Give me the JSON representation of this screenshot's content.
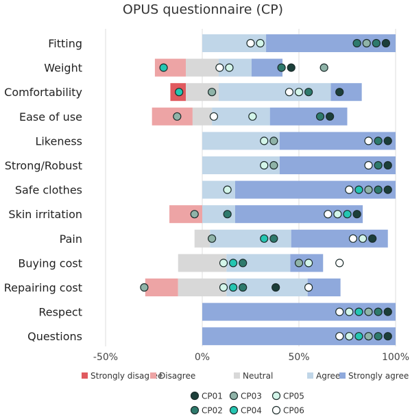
{
  "chart_data": {
    "type": "bar",
    "subtype": "diverging-stacked",
    "title": "OPUS questionnaire (CP)",
    "categories": [
      "Fitting",
      "Weight",
      "Comfortability",
      "Ease of use",
      "Likeness",
      "Strong/Robust",
      "Safe clothes",
      "Skin irritation",
      "Pain",
      "Buying cost",
      "Repairing cost",
      "Respect",
      "Questions"
    ],
    "series": [
      {
        "name": "Strongly disagree",
        "color": "#e05a5f",
        "values": [
          0,
          0,
          8,
          0,
          0,
          0,
          0,
          0,
          0,
          0,
          0,
          0,
          0
        ]
      },
      {
        "name": "Disagree",
        "color": "#eda4a5",
        "values": [
          0,
          16,
          0,
          21,
          0,
          0,
          0,
          17,
          0,
          0,
          17,
          0,
          0
        ]
      },
      {
        "name": "Neutral",
        "color": "#d8d8d8",
        "values": [
          0,
          17,
          17,
          10,
          0,
          0,
          0,
          0,
          8,
          25,
          25,
          0,
          0
        ]
      },
      {
        "name": "Agree",
        "color": "#c0d6e8",
        "values": [
          33,
          17,
          58,
          30,
          40,
          40,
          17,
          17,
          42,
          33,
          42,
          0,
          0
        ]
      },
      {
        "name": "Strongly agree",
        "color": "#8fa9dc",
        "values": [
          67,
          16,
          16,
          40,
          60,
          60,
          83,
          66,
          50,
          17,
          17,
          100,
          100
        ]
      }
    ],
    "xlim": [
      -50,
      100
    ],
    "xticks": [
      "-50%",
      "0%",
      "50%",
      "100%"
    ],
    "xtick_values": [
      -50,
      0,
      50,
      100
    ],
    "legend_position": "bottom",
    "participants": [
      {
        "name": "CP01",
        "color": "#1c3f3a"
      },
      {
        "name": "CP02",
        "color": "#2e7a6c"
      },
      {
        "name": "CP03",
        "color": "#8fb3a8"
      },
      {
        "name": "CP04",
        "color": "#25c6b2"
      },
      {
        "name": "CP05",
        "color": "#d3f5e9"
      },
      {
        "name": "CP06",
        "color": "#ffffff"
      }
    ],
    "markers": [
      [
        {
          "p": 5,
          "x": 25
        },
        {
          "p": 4,
          "x": 30
        },
        {
          "p": 1,
          "x": 80
        },
        {
          "p": 2,
          "x": 85
        },
        {
          "p": 1,
          "x": 90
        },
        {
          "p": 0,
          "x": 95
        }
      ],
      [
        {
          "p": 3,
          "x": -20
        },
        {
          "p": 5,
          "x": 9
        },
        {
          "p": 4,
          "x": 14
        },
        {
          "p": 1,
          "x": 41
        },
        {
          "p": 0,
          "x": 46
        },
        {
          "p": 2,
          "x": 63
        }
      ],
      [
        {
          "p": 3,
          "x": -12
        },
        {
          "p": 2,
          "x": 5
        },
        {
          "p": 5,
          "x": 45
        },
        {
          "p": 4,
          "x": 50
        },
        {
          "p": 1,
          "x": 55
        },
        {
          "p": 0,
          "x": 71
        }
      ],
      [
        {
          "p": 2,
          "x": -13
        },
        {
          "p": 5,
          "x": 6
        },
        {
          "p": 4,
          "x": 26
        },
        {
          "p": 1,
          "x": 61
        },
        {
          "p": 0,
          "x": 66
        }
      ],
      [
        {
          "p": 4,
          "x": 32
        },
        {
          "p": 2,
          "x": 37
        },
        {
          "p": 5,
          "x": 86
        },
        {
          "p": 1,
          "x": 91
        },
        {
          "p": 0,
          "x": 96
        }
      ],
      [
        {
          "p": 4,
          "x": 32
        },
        {
          "p": 2,
          "x": 37
        },
        {
          "p": 5,
          "x": 86
        },
        {
          "p": 1,
          "x": 91
        },
        {
          "p": 0,
          "x": 96
        }
      ],
      [
        {
          "p": 4,
          "x": 13
        },
        {
          "p": 5,
          "x": 76
        },
        {
          "p": 3,
          "x": 81
        },
        {
          "p": 2,
          "x": 86
        },
        {
          "p": 1,
          "x": 91
        },
        {
          "p": 0,
          "x": 96
        }
      ],
      [
        {
          "p": 2,
          "x": -4
        },
        {
          "p": 1,
          "x": 13
        },
        {
          "p": 5,
          "x": 65
        },
        {
          "p": 4,
          "x": 70
        },
        {
          "p": 3,
          "x": 75
        },
        {
          "p": 0,
          "x": 80
        }
      ],
      [
        {
          "p": 2,
          "x": 5
        },
        {
          "p": 3,
          "x": 32
        },
        {
          "p": 1,
          "x": 37
        },
        {
          "p": 5,
          "x": 78
        },
        {
          "p": 4,
          "x": 83
        },
        {
          "p": 0,
          "x": 88
        }
      ],
      [
        {
          "p": 4,
          "x": 11
        },
        {
          "p": 3,
          "x": 16
        },
        {
          "p": 1,
          "x": 21
        },
        {
          "p": 2,
          "x": 50
        },
        {
          "p": 4,
          "x": 55
        },
        {
          "p": 5,
          "x": 71
        }
      ],
      [
        {
          "p": 2,
          "x": -30
        },
        {
          "p": 4,
          "x": 11
        },
        {
          "p": 3,
          "x": 16
        },
        {
          "p": 1,
          "x": 21
        },
        {
          "p": 0,
          "x": 38
        },
        {
          "p": 5,
          "x": 55
        }
      ],
      [
        {
          "p": 5,
          "x": 71
        },
        {
          "p": 4,
          "x": 76
        },
        {
          "p": 3,
          "x": 81
        },
        {
          "p": 2,
          "x": 86
        },
        {
          "p": 1,
          "x": 91
        },
        {
          "p": 0,
          "x": 96
        }
      ],
      [
        {
          "p": 5,
          "x": 71
        },
        {
          "p": 4,
          "x": 76
        },
        {
          "p": 3,
          "x": 81
        },
        {
          "p": 2,
          "x": 86
        },
        {
          "p": 1,
          "x": 91
        },
        {
          "p": 0,
          "x": 96
        }
      ]
    ]
  }
}
